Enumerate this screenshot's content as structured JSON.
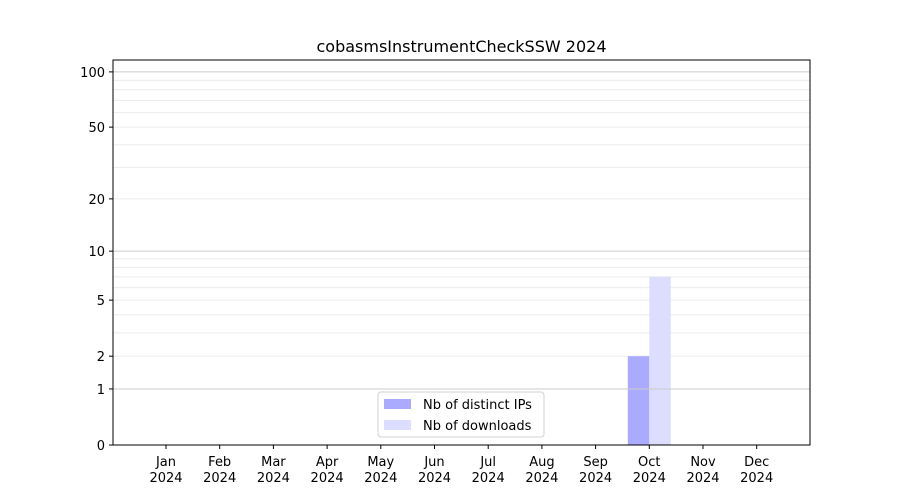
{
  "chart_data": {
    "type": "bar",
    "title": "cobasmsInstrumentCheckSSW 2024",
    "xlabel": "",
    "ylabel": "",
    "yscale": "log(1+y)",
    "ylim": [
      0,
      116
    ],
    "yticks": [
      0,
      1,
      2,
      5,
      10,
      20,
      50,
      100
    ],
    "grid": true,
    "legend_position": "lower-center",
    "categories": [
      "Jan\n2024",
      "Feb\n2024",
      "Mar\n2024",
      "Apr\n2024",
      "May\n2024",
      "Jun\n2024",
      "Jul\n2024",
      "Aug\n2024",
      "Sep\n2024",
      "Oct\n2024",
      "Nov\n2024",
      "Dec\n2024"
    ],
    "series": [
      {
        "name": "Nb of distinct IPs",
        "color": "#aaaaff",
        "values": [
          0,
          0,
          0,
          0,
          0,
          0,
          0,
          0,
          0,
          2,
          0,
          0
        ]
      },
      {
        "name": "Nb of downloads",
        "color": "#ddddff",
        "values": [
          0,
          0,
          0,
          0,
          0,
          0,
          0,
          0,
          0,
          7,
          0,
          0
        ]
      }
    ]
  }
}
